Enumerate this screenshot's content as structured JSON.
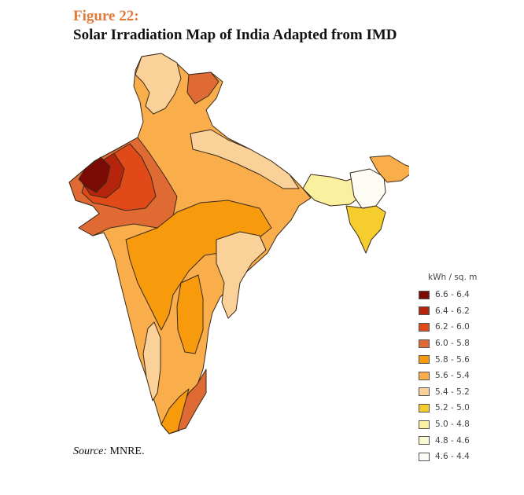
{
  "figure": {
    "label": "Figure 22:",
    "title": "Solar Irradiation Map of India Adapted from IMD"
  },
  "legend": {
    "title": "kWh / sq. m",
    "items": [
      {
        "label": "6.6 - 6.4",
        "color": "#7a0c05"
      },
      {
        "label": "6.4 - 6.2",
        "color": "#b5250d"
      },
      {
        "label": "6.2 - 6.0",
        "color": "#e04a18"
      },
      {
        "label": "6.0 - 5.8",
        "color": "#df6a33"
      },
      {
        "label": "5.8 - 5.6",
        "color": "#f79a0c"
      },
      {
        "label": "5.6 - 5.4",
        "color": "#f9ad4b"
      },
      {
        "label": "5.4 - 5.2",
        "color": "#fbd19a"
      },
      {
        "label": "5.2 - 5.0",
        "color": "#f5cd2c"
      },
      {
        "label": "5.0 - 4.8",
        "color": "#fbf0a0"
      },
      {
        "label": "4.8 - 4.6",
        "color": "#fafad2"
      },
      {
        "label": "4.6 - 4.4",
        "color": "#fdfdf5"
      }
    ]
  },
  "source": {
    "prefix": "Source:",
    "text": " MNRE."
  }
}
